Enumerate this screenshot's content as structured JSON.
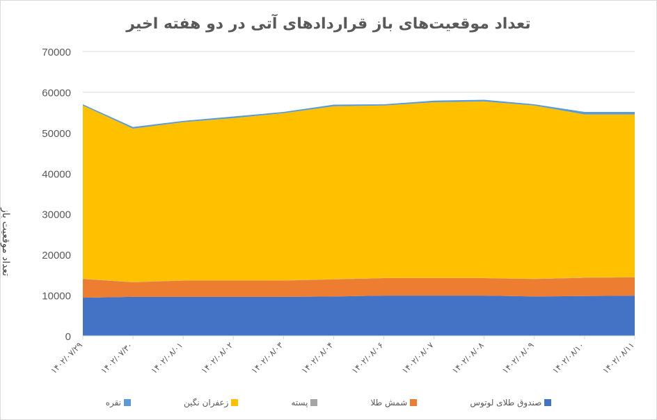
{
  "chart_data": {
    "type": "area",
    "stacked": true,
    "title": "تعداد موقعیت‌های باز قراردادهای آتی در دو هفته اخیر",
    "xlabel": "",
    "ylabel": "تعداد موقعیت باز",
    "ylim": [
      0,
      70000
    ],
    "yticks": [
      "0",
      "10000",
      "20000",
      "30000",
      "40000",
      "50000",
      "60000",
      "70000"
    ],
    "grid": true,
    "legend_position": "bottom",
    "categories": [
      "۱۴۰۲/۰۷/۲۹",
      "۱۴۰۲/۰۷/۳۰",
      "۱۴۰۲/۰۸/۰۱",
      "۱۴۰۲/۰۸/۰۲",
      "۱۴۰۲/۰۸/۰۳",
      "۱۴۰۲/۰۸/۰۴",
      "۱۴۰۲/۰۸/۰۶",
      "۱۴۰۲/۰۸/۰۷",
      "۱۴۰۲/۰۸/۰۸",
      "۱۴۰۲/۰۸/۰۹",
      "۱۴۰۲/۰۸/۱۰",
      "۱۴۰۲/۰۸/۱۱"
    ],
    "series": [
      {
        "name": "صندوق طلای لوتوس",
        "color": "#4472c4",
        "values": [
          9400,
          9600,
          9600,
          9600,
          9600,
          9700,
          9900,
          9900,
          9900,
          9700,
          9800,
          9900
        ]
      },
      {
        "name": "شمش طلا",
        "color": "#ed7d31",
        "values": [
          4600,
          3600,
          4000,
          4000,
          4000,
          4200,
          4300,
          4300,
          4300,
          4300,
          4500,
          4500
        ]
      },
      {
        "name": "پسته",
        "color": "#a5a5a5",
        "values": [
          50,
          50,
          50,
          50,
          50,
          50,
          50,
          50,
          50,
          50,
          50,
          50
        ]
      },
      {
        "name": "زعفران نگین",
        "color": "#ffc000",
        "values": [
          42650,
          37750,
          38950,
          39950,
          41150,
          42550,
          42450,
          43250,
          43450,
          42650,
          40150,
          40050
        ]
      },
      {
        "name": "نقره",
        "color": "#5b9bd5",
        "values": [
          300,
          400,
          300,
          400,
          300,
          400,
          300,
          400,
          400,
          300,
          600,
          600
        ]
      }
    ]
  },
  "legend": [
    {
      "label": "صندوق طلای لوتوس",
      "color": "#4472c4"
    },
    {
      "label": "شمش طلا",
      "color": "#ed7d31"
    },
    {
      "label": "پسته",
      "color": "#a5a5a5"
    },
    {
      "label": "زعفران نگین",
      "color": "#ffc000"
    },
    {
      "label": "نقره",
      "color": "#5b9bd5"
    }
  ]
}
